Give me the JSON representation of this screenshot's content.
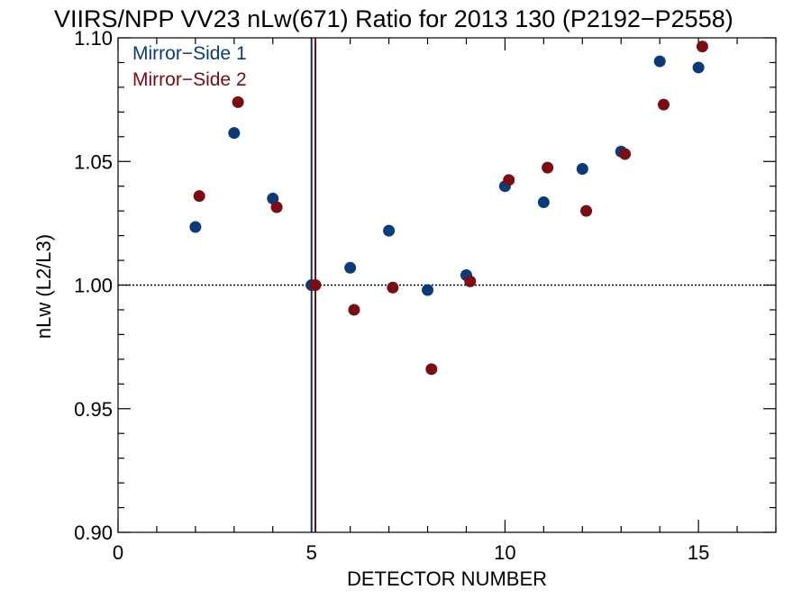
{
  "chart_data": {
    "type": "scatter",
    "title": "VIIRS/NPP VV23 nLw(671) Ratio for 2013 130 (P2192−P2558)",
    "xlabel": "DETECTOR NUMBER",
    "ylabel": "nLw (L2/L3)",
    "xlim": [
      0,
      17
    ],
    "ylim": [
      0.9,
      1.1
    ],
    "x_ticks": [
      0,
      5,
      10,
      15
    ],
    "x_tick_labels": [
      "0",
      "5",
      "10",
      "15"
    ],
    "y_ticks": [
      0.9,
      0.95,
      1.0,
      1.05,
      1.1
    ],
    "y_tick_labels": [
      "0.90",
      "0.95",
      "1.00",
      "1.05",
      "1.10"
    ],
    "reference_line": {
      "y": 1.0,
      "style": "dotted"
    },
    "vertical_lines": [
      {
        "x": 5.0,
        "color": "#0b2f6b"
      },
      {
        "x": 5.1,
        "color": "#7a0c14"
      }
    ],
    "legend_position": "top-left",
    "series": [
      {
        "name": "Mirror−Side 1",
        "color": "#0b3a78",
        "points": [
          {
            "x": 2,
            "y": 1.0235
          },
          {
            "x": 3,
            "y": 1.0615
          },
          {
            "x": 4,
            "y": 1.035
          },
          {
            "x": 5,
            "y": 1.0
          },
          {
            "x": 6,
            "y": 1.007
          },
          {
            "x": 7,
            "y": 1.022
          },
          {
            "x": 8,
            "y": 0.998
          },
          {
            "x": 9,
            "y": 1.004
          },
          {
            "x": 10,
            "y": 1.04
          },
          {
            "x": 11,
            "y": 1.0335
          },
          {
            "x": 12,
            "y": 1.047
          },
          {
            "x": 13,
            "y": 1.054
          },
          {
            "x": 14,
            "y": 1.0905
          },
          {
            "x": 15,
            "y": 1.088
          }
        ]
      },
      {
        "name": "Mirror−Side 2",
        "color": "#7a0c14",
        "points": [
          {
            "x": 2.1,
            "y": 1.036
          },
          {
            "x": 3.1,
            "y": 1.074
          },
          {
            "x": 4.1,
            "y": 1.0315
          },
          {
            "x": 5.1,
            "y": 1.0
          },
          {
            "x": 6.1,
            "y": 0.99
          },
          {
            "x": 7.1,
            "y": 0.999
          },
          {
            "x": 8.1,
            "y": 0.966
          },
          {
            "x": 9.1,
            "y": 1.0015
          },
          {
            "x": 10.1,
            "y": 1.0425
          },
          {
            "x": 11.1,
            "y": 1.0475
          },
          {
            "x": 12.1,
            "y": 1.03
          },
          {
            "x": 13.1,
            "y": 1.053
          },
          {
            "x": 14.1,
            "y": 1.073
          },
          {
            "x": 15.1,
            "y": 1.0965
          }
        ]
      }
    ]
  }
}
